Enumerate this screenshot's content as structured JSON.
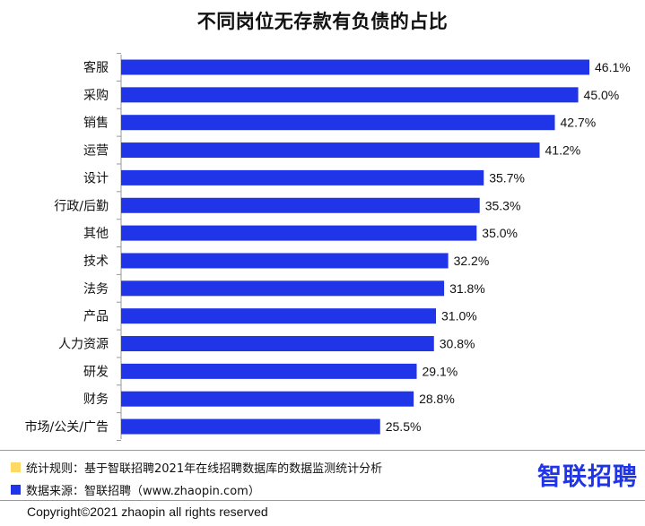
{
  "title": "不同岗位无存款有负债的占比",
  "colors": {
    "bar": "#2035e8",
    "legend_rule": "#ffd966",
    "legend_source": "#2035e8",
    "logo": "#2035e8"
  },
  "chart_data": {
    "type": "bar",
    "orientation": "horizontal",
    "title": "不同岗位无存款有负债的占比",
    "categories": [
      "客服",
      "采购",
      "销售",
      "运营",
      "设计",
      "行政/后勤",
      "其他",
      "技术",
      "法务",
      "产品",
      "人力资源",
      "研发",
      "财务",
      "市场/公关/广告"
    ],
    "values": [
      46.1,
      45.0,
      42.7,
      41.2,
      35.7,
      35.3,
      35.0,
      32.2,
      31.8,
      31.0,
      30.8,
      29.1,
      28.8,
      25.5
    ],
    "value_labels": [
      "46.1%",
      "45.0%",
      "42.7%",
      "41.2%",
      "35.7%",
      "35.3%",
      "35.0%",
      "32.2%",
      "31.8%",
      "31.0%",
      "30.8%",
      "29.1%",
      "28.8%",
      "25.5%"
    ],
    "unit": "%",
    "xlim": [
      0,
      46.1
    ],
    "grid": false,
    "xlabel": "",
    "ylabel": ""
  },
  "legend": {
    "rule": "统计规则：基于智联招聘2021年在线招聘数据库的数据监测统计分析",
    "source": "数据来源：智联招聘（www.zhaopin.com）"
  },
  "logo_text": "智联招聘",
  "copyright": "Copyright©2021 zhaopin all rights reserved"
}
